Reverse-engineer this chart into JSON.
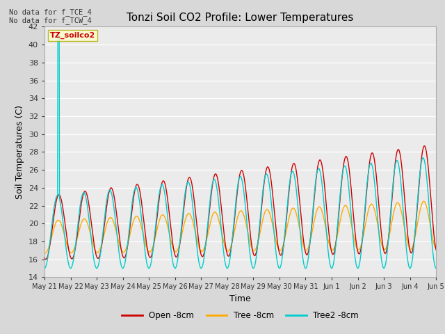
{
  "title": "Tonzi Soil CO2 Profile: Lower Temperatures",
  "xlabel": "Time",
  "ylabel": "Soil Temperatures (C)",
  "ylim": [
    14,
    42
  ],
  "yticks": [
    14,
    16,
    18,
    20,
    22,
    24,
    26,
    28,
    30,
    32,
    34,
    36,
    38,
    40,
    42
  ],
  "background_color": "#d8d8d8",
  "plot_bg_color": "#ebebeb",
  "annotation_text": "No data for f_TCE_4\nNo data for f_TCW_4",
  "legend_box_label": "TZ_soilco2",
  "legend_entries": [
    "Open -8cm",
    "Tree -8cm",
    "Tree2 -8cm"
  ],
  "legend_colors": [
    "#cc0000",
    "#ffaa00",
    "#00cccc"
  ],
  "line_colors": {
    "open": "#cc0000",
    "tree": "#ffaa00",
    "tree2": "#00cccc"
  },
  "x_tick_labels": [
    "May 21",
    "May 22",
    "May 23",
    "May 24",
    "May 25",
    "May 26",
    "May 27",
    "May 28",
    "May 29",
    "May 30",
    "May 31",
    "Jun 1",
    "Jun 2",
    "Jun 3",
    "Jun 4",
    "Jun 5"
  ]
}
